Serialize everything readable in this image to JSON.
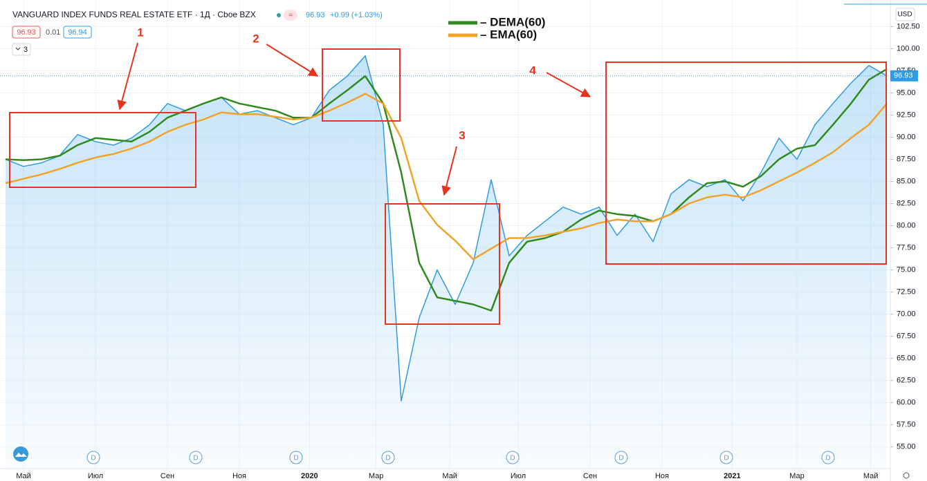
{
  "chart_data": {
    "type": "line",
    "title": "VANGUARD INDEX FUNDS REAL ESTATE ETF · 1Д · Cboe BZX",
    "last_price": "96.93",
    "change": "+0.99 (+1.03%)",
    "bid": "96.93",
    "spread": "0.01",
    "ask": "96.94",
    "indicator_count": "3",
    "currency": "USD",
    "price_label": "96.93",
    "annotations": [
      "1",
      "2",
      "3",
      "4"
    ],
    "dividend_markers": [
      "D",
      "D",
      "D",
      "D",
      "D",
      "D",
      "D",
      "D"
    ],
    "xlim": [
      0,
      49
    ],
    "xticks": [
      {
        "value": 1,
        "label": "Май"
      },
      {
        "value": 5,
        "label": "Июл"
      },
      {
        "value": 9,
        "label": "Сен"
      },
      {
        "value": 13,
        "label": "Ноя"
      },
      {
        "value": 16.9,
        "label": "2020"
      },
      {
        "value": 20.6,
        "label": "Мар"
      },
      {
        "value": 24.7,
        "label": "Май"
      },
      {
        "value": 28.5,
        "label": "Июл"
      },
      {
        "value": 32.5,
        "label": "Сен"
      },
      {
        "value": 36.5,
        "label": "Ноя"
      },
      {
        "value": 40.4,
        "label": "2021"
      },
      {
        "value": 44,
        "label": "Мар"
      },
      {
        "value": 48.1,
        "label": "Май"
      }
    ],
    "ylim": [
      52.4,
      105.5
    ],
    "yticks": [
      {
        "value": 55,
        "label": "55.00"
      },
      {
        "value": 57.5,
        "label": "57.50"
      },
      {
        "value": 60,
        "label": "60.00"
      },
      {
        "value": 62.5,
        "label": "62.50"
      },
      {
        "value": 65,
        "label": "65.00"
      },
      {
        "value": 67.5,
        "label": "67.50"
      },
      {
        "value": 70,
        "label": "70.00"
      },
      {
        "value": 72.5,
        "label": "72.50"
      },
      {
        "value": 75,
        "label": "75.00"
      },
      {
        "value": 77.5,
        "label": "77.50"
      },
      {
        "value": 80,
        "label": "80.00"
      },
      {
        "value": 82.5,
        "label": "82.50"
      },
      {
        "value": 85,
        "label": "85.00"
      },
      {
        "value": 87.5,
        "label": "87.50"
      },
      {
        "value": 90,
        "label": "90.00"
      },
      {
        "value": 92.5,
        "label": "92.50"
      },
      {
        "value": 95,
        "label": "95.00"
      },
      {
        "value": 97.5,
        "label": "97.50"
      },
      {
        "value": 100,
        "label": "100.00"
      },
      {
        "value": 102.5,
        "label": "102.50"
      }
    ],
    "series": [
      {
        "color": "#2e9be6",
        "values": [
          87.5,
          86.7,
          87.1,
          87.9,
          90.3,
          89.5,
          89.1,
          89.9,
          91.4,
          93.8,
          93.0,
          93.8,
          94.5,
          92.6,
          93.0,
          92.2,
          91.4,
          92.2,
          95.3,
          96.9,
          99.2,
          91.4,
          60.2,
          69.6,
          75.0,
          71.1,
          75.8,
          85.2,
          76.6,
          78.9,
          80.5,
          82.1,
          81.3,
          82.1,
          78.9,
          81.3,
          78.2,
          83.6,
          85.2,
          84.4,
          85.2,
          82.8,
          86.0,
          89.9,
          87.5,
          91.4,
          93.8,
          96.1,
          98.1,
          96.93
        ]
      },
      {
        "name": "– DEMA(60)",
        "color": "#2f8a1e",
        "values": [
          87.5,
          87.4,
          87.5,
          87.9,
          89.1,
          89.9,
          89.7,
          89.5,
          90.6,
          92.2,
          93.0,
          93.8,
          94.5,
          93.8,
          93.4,
          93.0,
          92.2,
          92.2,
          93.8,
          95.3,
          96.9,
          93.8,
          86.0,
          75.8,
          71.9,
          71.5,
          71.1,
          70.4,
          75.8,
          78.2,
          78.6,
          79.3,
          80.7,
          81.7,
          81.3,
          81.1,
          80.5,
          81.3,
          83.2,
          84.8,
          85.0,
          84.4,
          85.6,
          87.5,
          88.7,
          89.1,
          91.4,
          93.8,
          96.5,
          97.7
        ]
      },
      {
        "name": "– EMA(60)",
        "color": "#f0a229",
        "values": [
          84.8,
          85.3,
          85.8,
          86.4,
          87.1,
          87.7,
          88.1,
          88.7,
          89.5,
          90.6,
          91.4,
          92.0,
          92.8,
          92.6,
          92.6,
          92.3,
          92.0,
          92.2,
          93.0,
          93.9,
          94.9,
          93.8,
          89.9,
          82.8,
          80.1,
          78.3,
          76.2,
          77.4,
          78.6,
          78.6,
          78.9,
          79.3,
          79.7,
          80.3,
          80.7,
          80.5,
          80.5,
          81.3,
          82.5,
          83.2,
          83.5,
          83.2,
          84.0,
          85.0,
          86.0,
          87.1,
          88.3,
          89.9,
          91.4,
          93.8
        ]
      }
    ]
  }
}
